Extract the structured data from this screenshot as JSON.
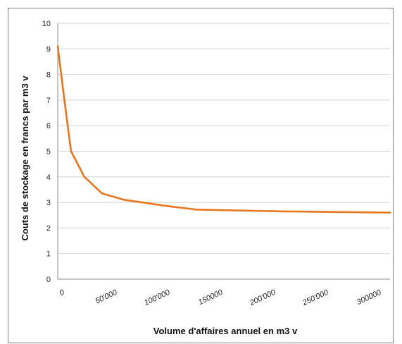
{
  "chart_data": {
    "type": "line",
    "title": "",
    "xlabel": "Volume d'affaires annuel en m3 v",
    "ylabel": "Couts de stockage en francs par m3 v",
    "xlim": [
      0,
      300000
    ],
    "ylim": [
      0,
      10
    ],
    "y_ticks": [
      "0",
      "1",
      "2",
      "3",
      "4",
      "5",
      "6",
      "7",
      "8",
      "9",
      "10"
    ],
    "x_tick_labels": [
      "0",
      "50'000",
      "100'000",
      "150000",
      "200'000",
      "250'000",
      "300000"
    ],
    "grid": "horizontal",
    "legend": "none",
    "line_color": "#e8761e",
    "series": [
      {
        "x": [
          0,
          6000,
          12000,
          18000,
          24000,
          40000,
          60000,
          100000,
          125000,
          200000,
          300000
        ],
        "values": [
          9.1,
          7.0,
          5.0,
          4.5,
          4.0,
          3.35,
          3.1,
          2.85,
          2.72,
          2.65,
          2.6
        ]
      }
    ]
  }
}
